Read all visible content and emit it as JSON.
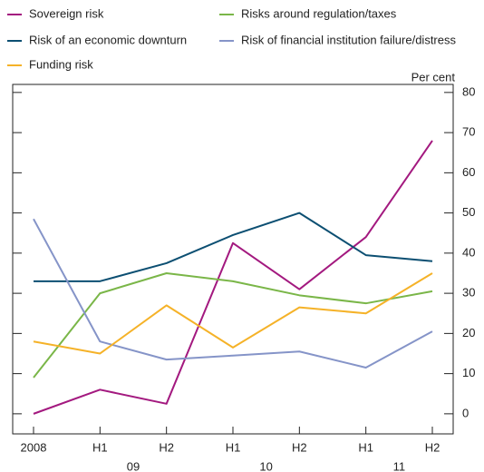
{
  "chart_data": {
    "type": "line",
    "y_unit_label": "Per cent",
    "categories": [
      "2008",
      "H1",
      "H2",
      "H1",
      "H2",
      "H1",
      "H2"
    ],
    "year_labels": [
      "09",
      "10",
      "11"
    ],
    "series": [
      {
        "name": "Sovereign risk",
        "color": "#a3197f",
        "values": [
          0,
          6,
          2.5,
          42.5,
          31,
          44,
          68
        ]
      },
      {
        "name": "Risks around regulation/taxes",
        "color": "#7ab648",
        "values": [
          9,
          30,
          35,
          33,
          29.5,
          27.5,
          30.5
        ]
      },
      {
        "name": "Risk of an economic downturn",
        "color": "#0c4f72",
        "values": [
          33,
          33,
          37.5,
          44.5,
          50,
          39.5,
          38
        ]
      },
      {
        "name": "Risk of financial institution failure/distress",
        "color": "#8594c8",
        "values": [
          48.5,
          18,
          13.5,
          14.5,
          15.5,
          11.5,
          20.5
        ]
      },
      {
        "name": "Funding risk",
        "color": "#f5b228",
        "values": [
          18,
          15,
          27,
          16.5,
          26.5,
          25,
          35
        ]
      }
    ],
    "ylim": [
      -5,
      82
    ],
    "yticks": [
      0,
      10,
      20,
      30,
      40,
      50,
      60,
      70,
      80
    ]
  }
}
